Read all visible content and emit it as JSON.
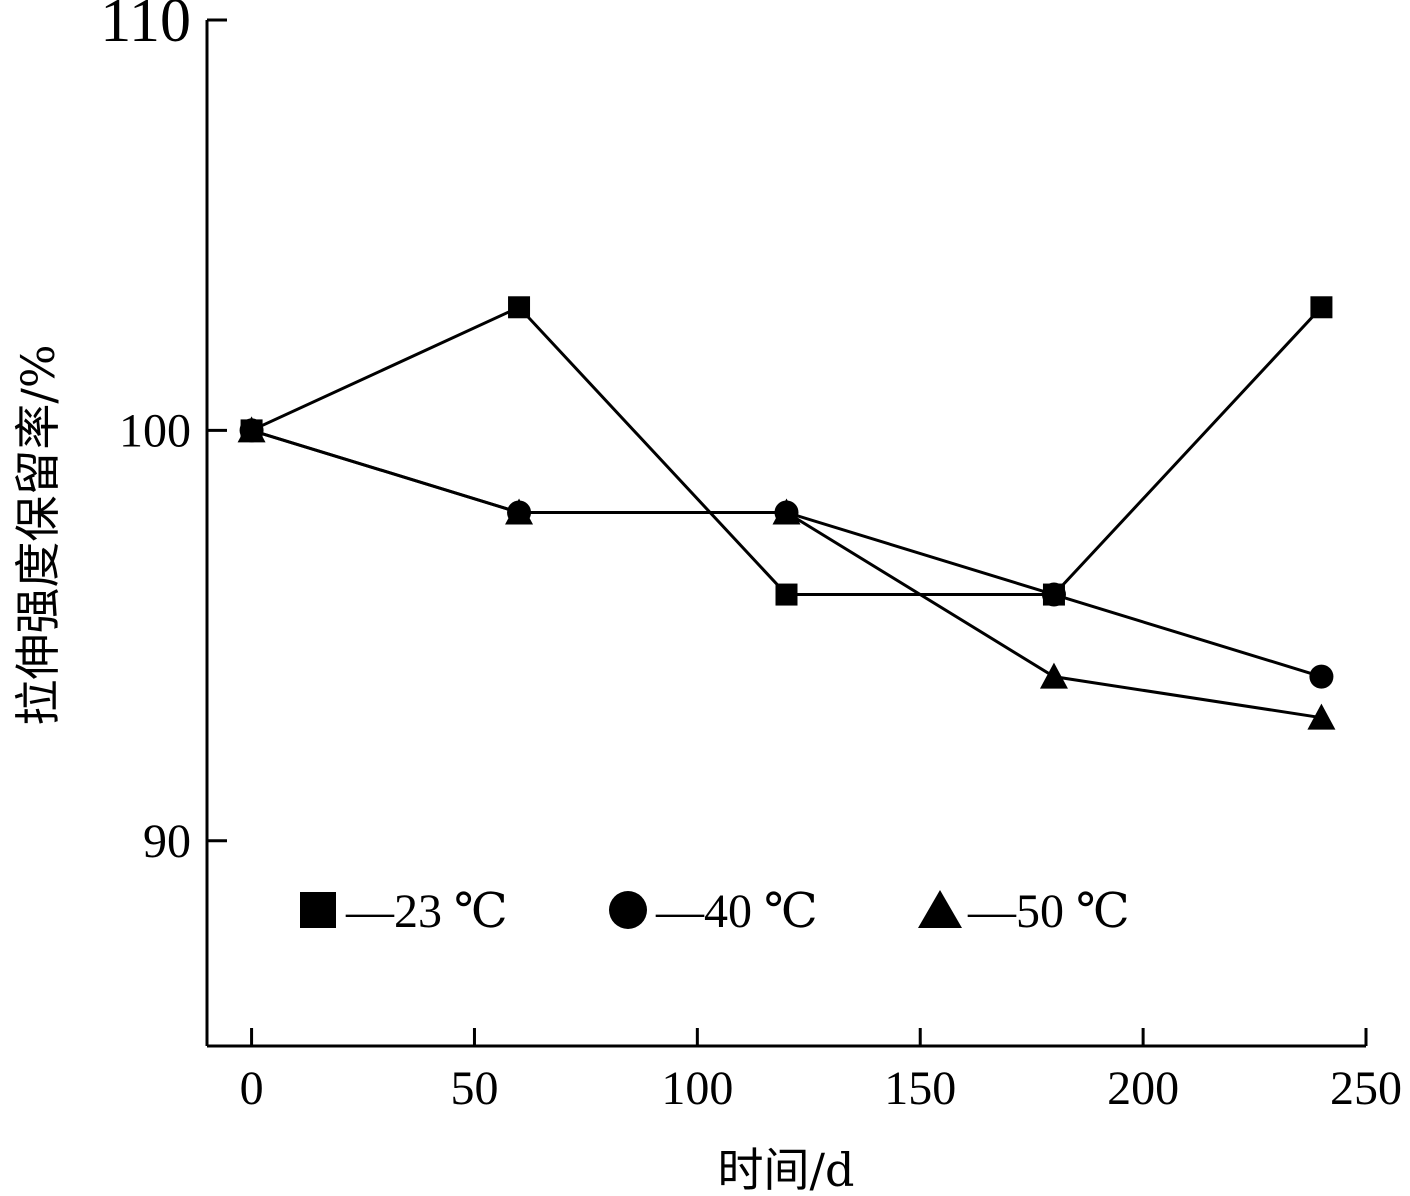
{
  "chart_data": {
    "type": "line",
    "xlabel": "时间/d",
    "ylabel": "拉伸强度保留率/%",
    "xlim": [
      -10,
      250
    ],
    "ylim": [
      85,
      110
    ],
    "xticks": [
      0,
      50,
      100,
      150,
      200,
      250
    ],
    "yticks": [
      90,
      100,
      110
    ],
    "xtick_labels": [
      "0",
      "50",
      "100",
      "150",
      "200",
      "250"
    ],
    "ytick_labels": [
      "90",
      "100",
      "110"
    ],
    "grid": false,
    "legend_position": "bottom-left inside",
    "x": [
      0,
      60,
      120,
      180,
      240
    ],
    "series": [
      {
        "name": "—23 ℃",
        "marker": "square",
        "values": [
          100,
          103,
          96,
          96,
          103
        ]
      },
      {
        "name": "—40 ℃",
        "marker": "circle",
        "values": [
          100,
          98,
          98,
          96,
          94
        ]
      },
      {
        "name": "—50 ℃",
        "marker": "triangle",
        "values": [
          100,
          98,
          98,
          94,
          93
        ]
      }
    ]
  }
}
